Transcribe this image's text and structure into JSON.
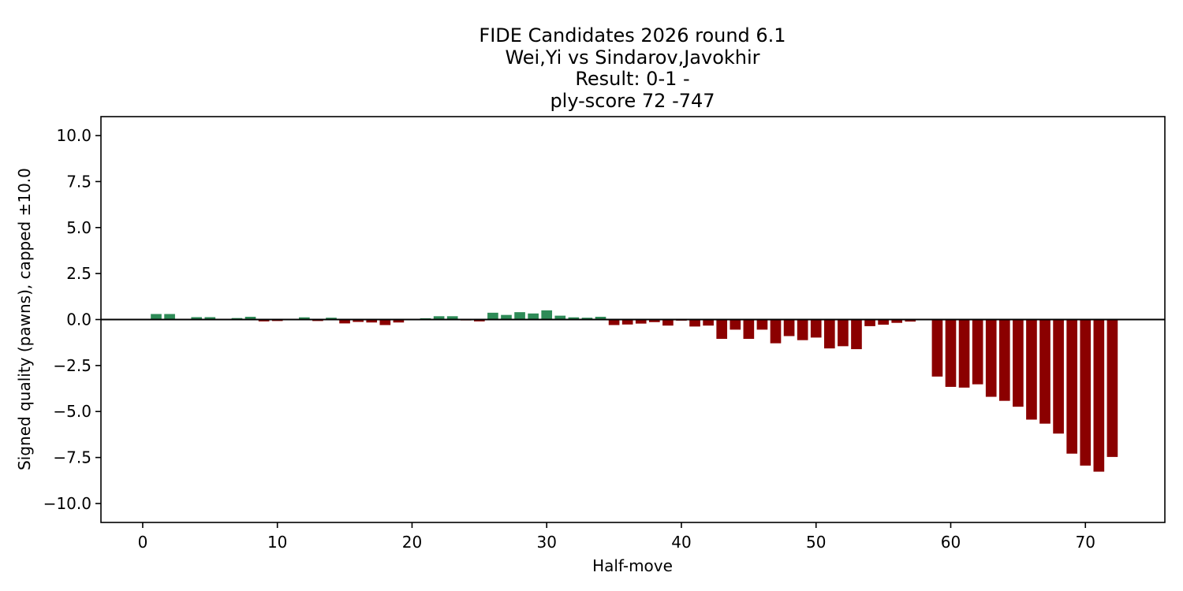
{
  "chart_data": {
    "type": "bar",
    "title": "FIDE Candidates 2026  round 6.1\nWei,Yi vs Sindarov,Javokhir\nResult: 0-1 -\nply-score 72 -747",
    "title_lines": [
      "FIDE Candidates 2026  round 6.1",
      "Wei,Yi vs Sindarov,Javokhir",
      "Result: 0-1 -",
      "ply-score 72 -747"
    ],
    "xlabel": "Half-move",
    "ylabel": "Signed quality (pawns), capped ±10.0",
    "x": [
      1,
      2,
      3,
      4,
      5,
      6,
      7,
      8,
      9,
      10,
      11,
      12,
      13,
      14,
      15,
      16,
      17,
      18,
      19,
      20,
      21,
      22,
      23,
      24,
      25,
      26,
      27,
      28,
      29,
      30,
      31,
      32,
      33,
      34,
      35,
      36,
      37,
      38,
      39,
      40,
      41,
      42,
      43,
      44,
      45,
      46,
      47,
      48,
      49,
      50,
      51,
      52,
      53,
      54,
      55,
      56,
      57,
      58,
      59,
      60,
      61,
      62,
      63,
      64,
      65,
      66,
      67,
      68,
      69,
      70,
      71,
      72
    ],
    "values": [
      0.3,
      0.3,
      0.04,
      0.13,
      0.13,
      0.02,
      0.08,
      0.15,
      -0.1,
      -0.08,
      -0.04,
      0.12,
      -0.08,
      0.1,
      -0.21,
      -0.13,
      -0.16,
      -0.3,
      -0.16,
      0.03,
      0.07,
      0.18,
      0.18,
      -0.05,
      -0.1,
      0.37,
      0.25,
      0.4,
      0.33,
      0.5,
      0.21,
      0.12,
      0.1,
      0.15,
      -0.3,
      -0.27,
      -0.22,
      -0.14,
      -0.33,
      -0.06,
      -0.38,
      -0.33,
      -1.05,
      -0.55,
      -1.05,
      -0.55,
      -1.29,
      -0.9,
      -1.12,
      -0.98,
      -1.57,
      -1.45,
      -1.61,
      -0.36,
      -0.28,
      -0.18,
      -0.11,
      -0.03,
      -3.1,
      -3.66,
      -3.7,
      -3.52,
      -4.2,
      -4.42,
      -4.74,
      -5.44,
      -5.66,
      -6.2,
      -7.29,
      -7.94,
      -8.27,
      -7.47
    ],
    "bar_colors": {
      "positive": "#2e8b57",
      "negative": "#8b0000"
    },
    "axis_color": "#000000",
    "xlim": [
      -3.1,
      75.9
    ],
    "ylim": [
      -11.03,
      11.03
    ],
    "xticks": [
      0,
      10,
      20,
      30,
      40,
      50,
      60,
      70
    ],
    "xtick_labels": [
      "0",
      "10",
      "20",
      "30",
      "40",
      "50",
      "60",
      "70"
    ],
    "yticks": [
      10.0,
      7.5,
      5.0,
      2.5,
      0.0,
      -2.5,
      -5.0,
      -7.5,
      -10.0
    ],
    "ytick_labels": [
      "10.0",
      "7.5",
      "5.0",
      "2.5",
      "0.0",
      "−2.5",
      "−5.0",
      "−7.5",
      "−10.0"
    ],
    "zero_line": true,
    "grid": false,
    "legend": "none",
    "bar_width_fraction": 0.8
  }
}
